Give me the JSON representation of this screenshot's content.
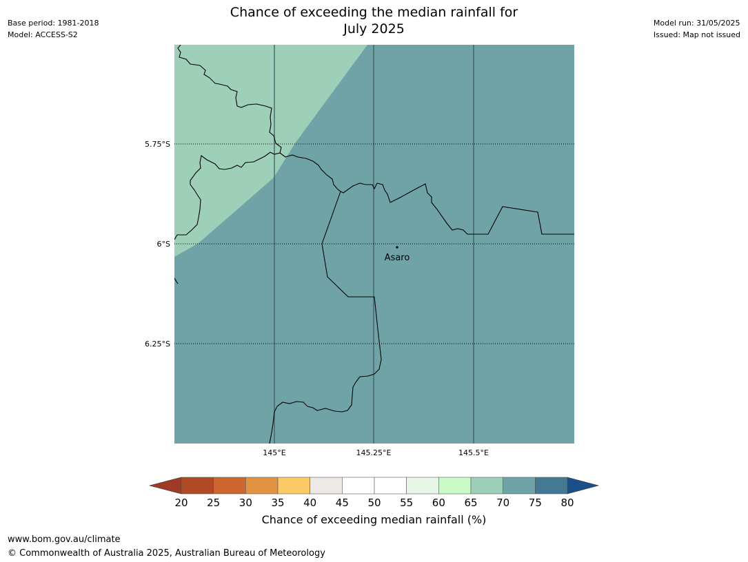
{
  "title": {
    "line1": "Chance of exceeding the median rainfall for",
    "line2": "July 2025"
  },
  "meta_left": {
    "base_period": "Base period: 1981-2018",
    "model": "Model: ACCESS-S2"
  },
  "meta_right": {
    "model_run": "Model run: 31/05/2025",
    "issued": "Issued: Map not issued"
  },
  "map": {
    "lat_labels": [
      "5.75°S",
      "6°S",
      "6.25°S"
    ],
    "lon_labels": [
      "145°E",
      "145.25°E",
      "145.5°E"
    ],
    "place": "Asaro",
    "region_colors": {
      "band_65_70": "#9dcfb9",
      "band_70_75": "#6fa3a7"
    }
  },
  "colorbar": {
    "title": "Chance of exceeding median rainfall (%)",
    "ticks": [
      "20",
      "25",
      "30",
      "35",
      "40",
      "45",
      "50",
      "55",
      "60",
      "65",
      "70",
      "75",
      "80"
    ],
    "under_color": "#9e3a26",
    "over_color": "#1a4f8a",
    "colors": [
      "#b04a26",
      "#cd6531",
      "#e19243",
      "#fcca64",
      "#ede9e4",
      "#ffffff",
      "#ffffff",
      "#e8f6e8",
      "#c8fbc8",
      "#9dcfb9",
      "#6fa3a7",
      "#427993"
    ]
  },
  "footer": {
    "url": "www.bom.gov.au/climate",
    "copyright": "© Commonwealth of Australia 2025, Australian Bureau of Meteorology"
  }
}
